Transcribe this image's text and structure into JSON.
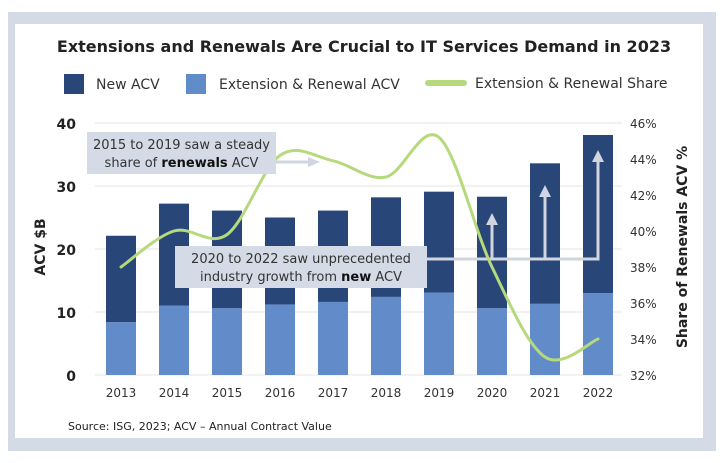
{
  "chart_data": {
    "type": "bar",
    "title": "Extensions and Renewals Are Crucial to IT Services Demand in 2023",
    "categories": [
      "2013",
      "2014",
      "2015",
      "2016",
      "2017",
      "2018",
      "2019",
      "2020",
      "2021",
      "2022"
    ],
    "series": [
      {
        "name": "New ACV",
        "type": "bar",
        "stack": "acv",
        "color": "#284677",
        "values": [
          13.7,
          16.2,
          15.5,
          13.8,
          14.5,
          15.8,
          16.0,
          17.7,
          22.3,
          25.1
        ]
      },
      {
        "name": "Extension & Renewal ACV",
        "type": "bar",
        "stack": "acv",
        "color": "#628bc9",
        "values": [
          8.4,
          11.0,
          10.6,
          11.2,
          11.6,
          12.4,
          13.1,
          10.6,
          11.3,
          13.0
        ]
      },
      {
        "name": "Extension & Renewal Share",
        "type": "line",
        "axis": "right",
        "color": "#b5d97c",
        "values": [
          38.0,
          40.0,
          39.8,
          44.2,
          43.9,
          43.0,
          45.2,
          38.0,
          33.0,
          34.0
        ]
      }
    ],
    "ylabel": "ACV $B",
    "ylim": [
      0,
      40
    ],
    "yticks": [
      "0",
      "10",
      "20",
      "30",
      "40"
    ],
    "y2label": "Share of Renewals ACV %",
    "y2lim": [
      32,
      46
    ],
    "y2ticks": [
      "32%",
      "34%",
      "36%",
      "38%",
      "40%",
      "42%",
      "44%",
      "46%"
    ],
    "grid": true,
    "legend": "top",
    "annotations": [
      {
        "lines": [
          [
            "2015 to 2019 saw a steady"
          ],
          [
            "share of ",
            "renewals",
            " ACV"
          ]
        ]
      },
      {
        "lines": [
          [
            "2020 to 2022 saw unprecedented"
          ],
          [
            "industry growth from ",
            "new",
            " ACV"
          ]
        ]
      }
    ],
    "source": "Source: ISG, 2023; ACV – Annual Contract Value"
  }
}
